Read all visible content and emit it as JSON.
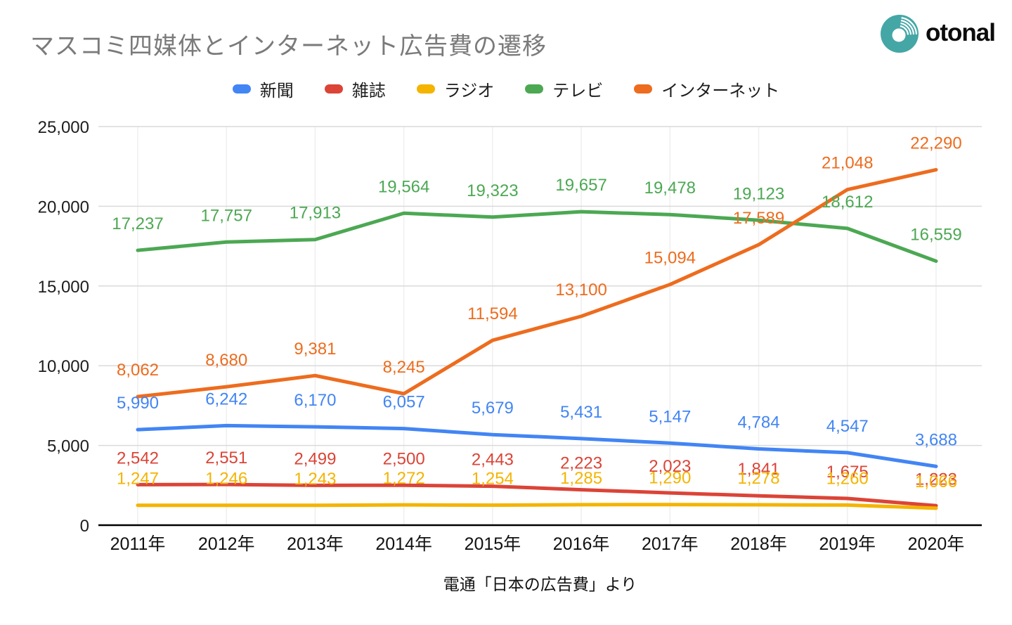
{
  "header": {
    "title": "マスコミ四媒体とインターネット広告費の遷移",
    "logo_text": "otonal",
    "logo_color": "#45A6A6"
  },
  "footer": {
    "source": "電通「日本の広告費」より"
  },
  "chart_data": {
    "type": "line",
    "title": "マスコミ四媒体とインターネット広告費の遷移",
    "x": [
      "2011年",
      "2012年",
      "2013年",
      "2014年",
      "2015年",
      "2016年",
      "2017年",
      "2018年",
      "2019年",
      "2020年"
    ],
    "series": [
      {
        "id": "newspaper",
        "name": "新聞",
        "color": "#4285F4",
        "values": [
          5990,
          6242,
          6170,
          6057,
          5679,
          5431,
          5147,
          4784,
          4547,
          3688
        ]
      },
      {
        "id": "magazine",
        "name": "雑誌",
        "color": "#DB4437",
        "values": [
          2542,
          2551,
          2499,
          2500,
          2443,
          2223,
          2023,
          1841,
          1675,
          1223
        ]
      },
      {
        "id": "radio",
        "name": "ラジオ",
        "color": "#F4B400",
        "values": [
          1247,
          1246,
          1243,
          1272,
          1254,
          1285,
          1290,
          1278,
          1260,
          1066
        ]
      },
      {
        "id": "tv",
        "name": "テレビ",
        "color": "#4CA853",
        "values": [
          17237,
          17757,
          17913,
          19564,
          19323,
          19657,
          19478,
          19123,
          18612,
          16559
        ]
      },
      {
        "id": "internet",
        "name": "インターネット",
        "color": "#ED6C1E",
        "values": [
          8062,
          8680,
          9381,
          8245,
          11594,
          13100,
          15094,
          17589,
          21048,
          22290
        ]
      }
    ],
    "y_ticks": [
      "0",
      "5,000",
      "10,000",
      "15,000",
      "20,000",
      "25,000"
    ],
    "ylim": [
      0,
      25000
    ],
    "grid": true,
    "legend_position": "top",
    "data_labels": true,
    "source_note": "電通「日本の広告費」より"
  }
}
